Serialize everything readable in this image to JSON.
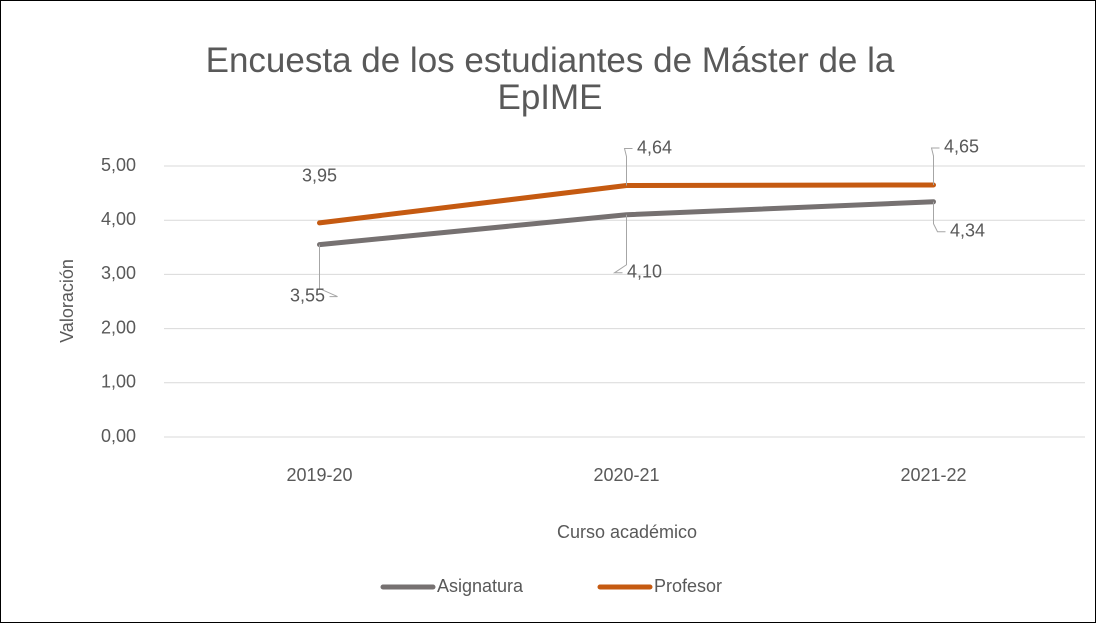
{
  "chart_data": {
    "type": "line",
    "title": "Encuesta de los estudiantes de Máster de la EpIME",
    "x_label": "Curso académico",
    "y_label": "Valoración",
    "categories": [
      "2019-20",
      "2020-21",
      "2021-22"
    ],
    "series": [
      {
        "name": "Asignatura",
        "color": "#767171",
        "values": [
          3.55,
          4.1,
          4.34
        ],
        "value_labels": [
          "3,55",
          "4,10",
          "4,34"
        ]
      },
      {
        "name": "Profesor",
        "color": "#c55a11",
        "values": [
          3.95,
          4.64,
          4.65
        ],
        "value_labels": [
          "3,95",
          "4,64",
          "4,65"
        ]
      }
    ],
    "ylim": [
      0,
      5
    ],
    "yticks": [
      {
        "value": 0,
        "label": "0,00"
      },
      {
        "value": 1,
        "label": "1,00"
      },
      {
        "value": 2,
        "label": "2,00"
      },
      {
        "value": 3,
        "label": "3,00"
      },
      {
        "value": 4,
        "label": "4,00"
      },
      {
        "value": 5,
        "label": "5,00"
      }
    ],
    "grid": true,
    "legend": "bottom"
  }
}
